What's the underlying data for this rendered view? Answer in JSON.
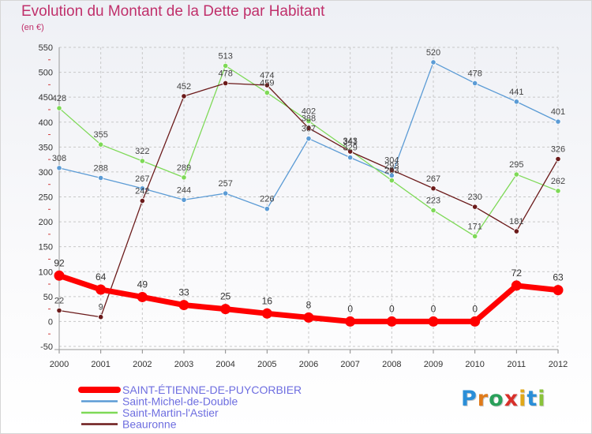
{
  "header": {
    "title": "Evolution du Montant de la Dette par Habitant",
    "subtitle": "(en €)"
  },
  "colors": {
    "title": "#c0306b",
    "legend_text": "#6e6ee0",
    "grid": "#c8c8c8"
  },
  "logo": {
    "text": "Proxiti",
    "letters": [
      {
        "ch": "P",
        "color": "#2a8ed8"
      },
      {
        "ch": "r",
        "color": "#e07b1a"
      },
      {
        "ch": "o",
        "color": "#2aa05a"
      },
      {
        "ch": "x",
        "color": "#d8302a"
      },
      {
        "ch": "i",
        "color": "#e0a81a"
      },
      {
        "ch": "t",
        "color": "#2a8ed8"
      },
      {
        "ch": "i",
        "color": "#8ac33a"
      }
    ]
  },
  "chart_data": {
    "type": "line",
    "x": [
      "2000",
      "2001",
      "2002",
      "2003",
      "2004",
      "2005",
      "2006",
      "2007",
      "2008",
      "2009",
      "2010",
      "2011",
      "2012"
    ],
    "ylim": [
      -50,
      550
    ],
    "yticks": [
      -50,
      0,
      50,
      100,
      150,
      200,
      250,
      300,
      350,
      400,
      450,
      500,
      550
    ],
    "grid": true,
    "legend_position": "bottom-left",
    "series": [
      {
        "name": "SAINT-ÉTIENNE-DE-PUYCORBIER",
        "color": "#ff0000",
        "values": [
          92,
          64,
          49,
          33,
          25,
          16,
          8,
          0,
          0,
          0,
          0,
          72,
          63
        ]
      },
      {
        "name": "Saint-Michel-de-Double",
        "color": "#5b9bd5",
        "values": [
          308,
          288,
          267,
          244,
          257,
          226,
          367,
          329,
          293,
          520,
          478,
          441,
          401
        ]
      },
      {
        "name": "Saint-Martin-l'Astier",
        "color": "#7ed957",
        "values": [
          428,
          355,
          322,
          289,
          513,
          459,
          402,
          343,
          283,
          223,
          171,
          295,
          262
        ]
      },
      {
        "name": "Beauronne",
        "color": "#6b1a1a",
        "values": [
          22,
          9,
          242,
          452,
          478,
          474,
          388,
          341,
          304,
          267,
          230,
          181,
          326
        ]
      }
    ]
  }
}
